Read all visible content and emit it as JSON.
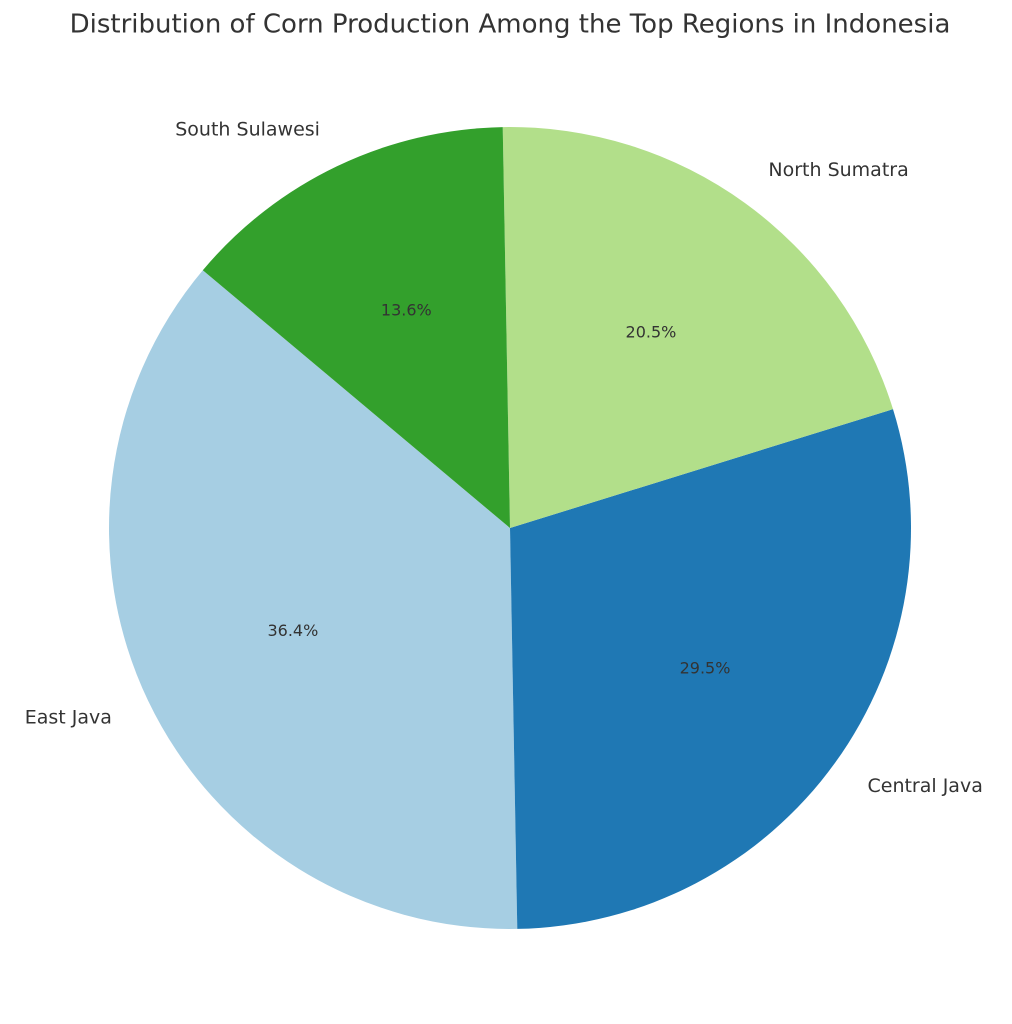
{
  "chart_data": {
    "type": "pie",
    "title": "Distribution of Corn Production Among the Top Regions in Indonesia",
    "categories": [
      "East Java",
      "Central Java",
      "North Sumatra",
      "South Sulawesi"
    ],
    "values": [
      36.4,
      29.5,
      20.5,
      13.6
    ],
    "value_labels": [
      "36.4%",
      "29.5%",
      "20.5%",
      "13.6%"
    ],
    "colors": [
      "#a6cee3",
      "#1f78b4",
      "#b2df8a",
      "#33a02c"
    ]
  }
}
